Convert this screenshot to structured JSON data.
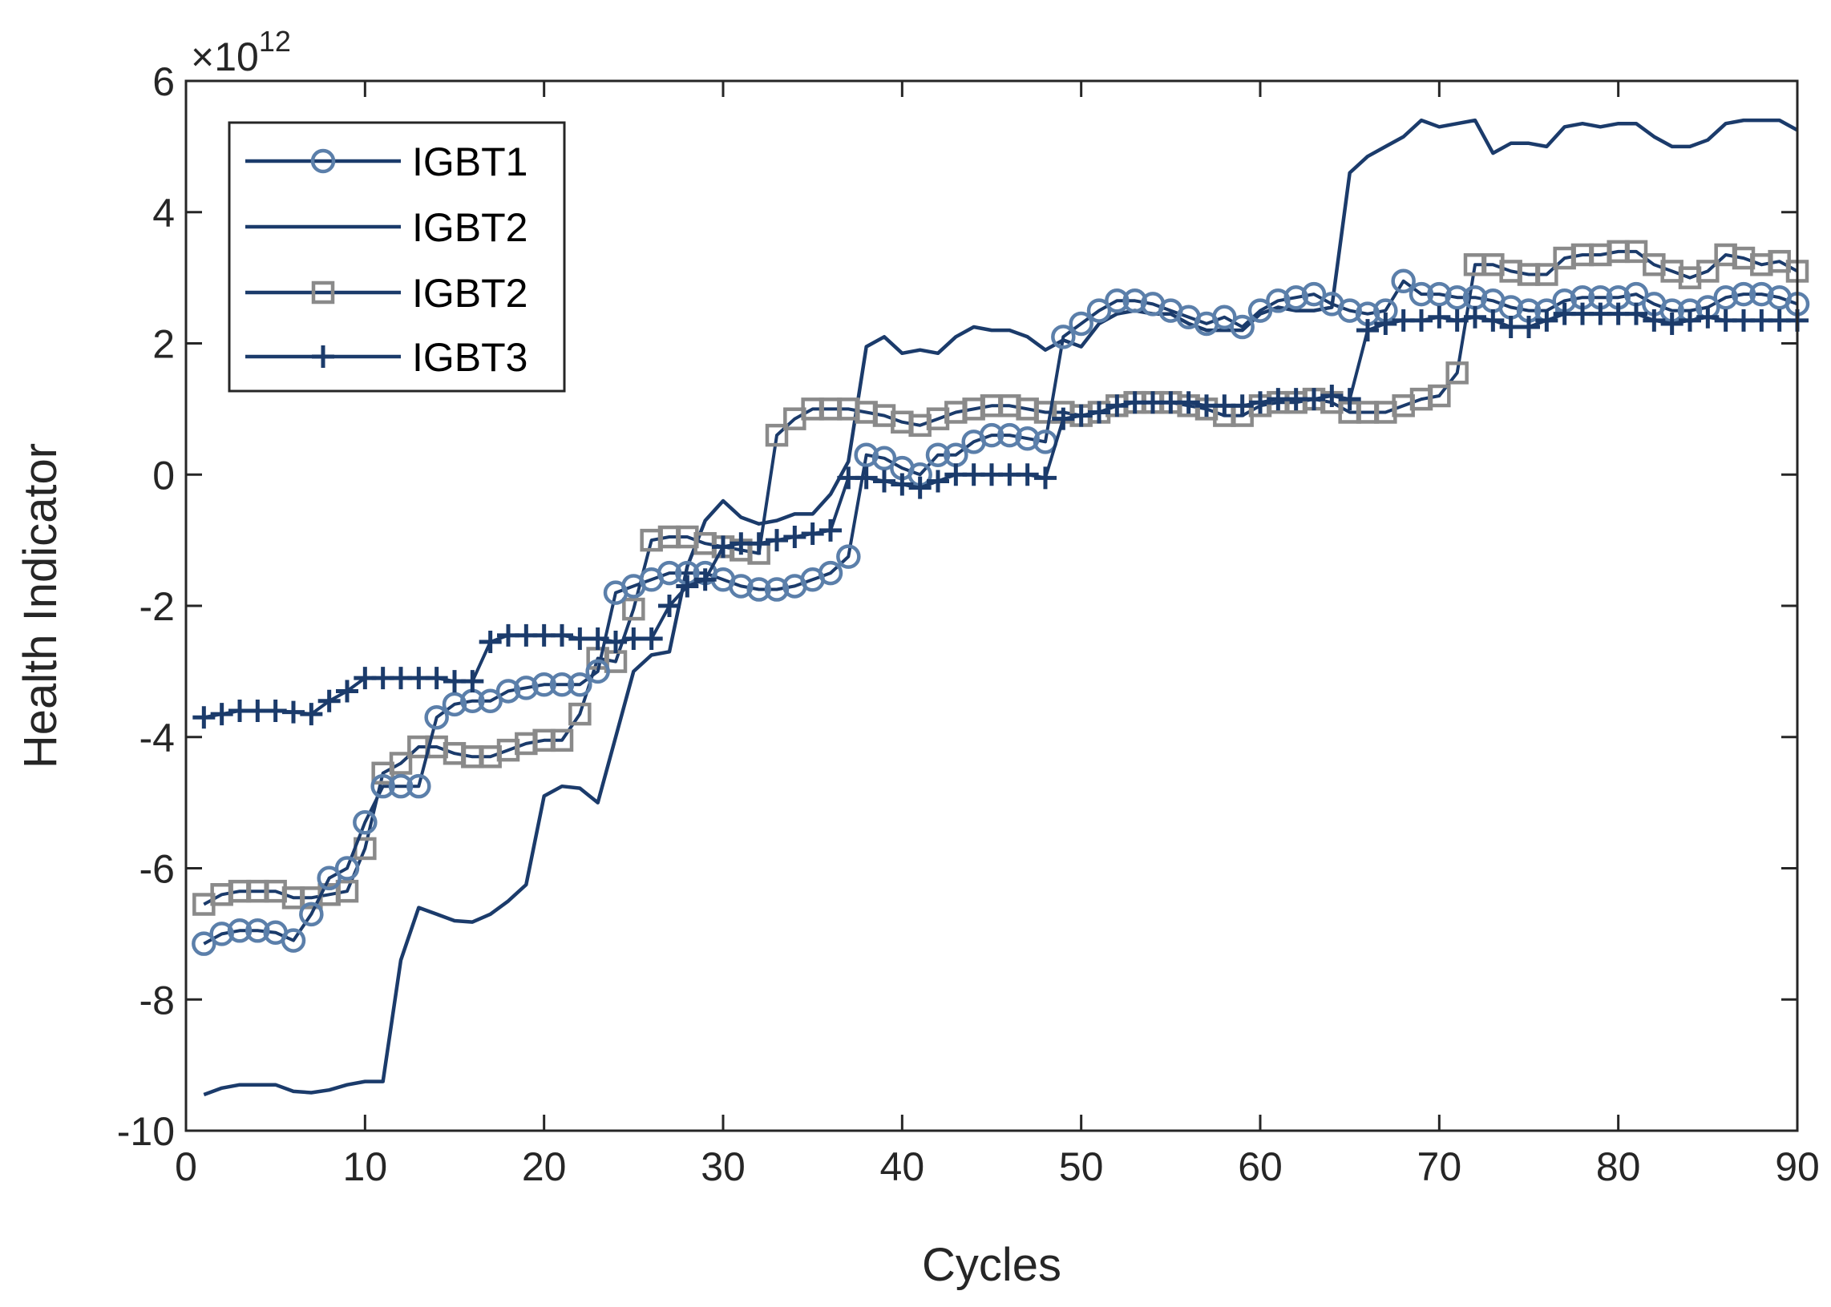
{
  "chart_data": {
    "type": "line",
    "title": "",
    "xlabel": "Cycles",
    "ylabel": "Health Indicator",
    "y_exponent": {
      "base": "×10",
      "power": "12"
    },
    "xlim": [
      0,
      90
    ],
    "ylim": [
      -10,
      6
    ],
    "xticks": [
      0,
      10,
      20,
      30,
      40,
      50,
      60,
      70,
      80,
      90
    ],
    "yticks": [
      6,
      4,
      2,
      0,
      -2,
      -4,
      -6,
      -8,
      -10
    ],
    "xtick_labels": [
      "0",
      "10",
      "20",
      "30",
      "40",
      "50",
      "60",
      "70",
      "80",
      "90"
    ],
    "ytick_labels": [
      "6",
      "4",
      "2",
      "0",
      "-2",
      "-4",
      "-6",
      "-8",
      "-10"
    ],
    "grid": false,
    "legend_position": "top-left",
    "x": [
      1,
      2,
      3,
      4,
      5,
      6,
      7,
      8,
      9,
      10,
      11,
      12,
      13,
      14,
      15,
      16,
      17,
      18,
      19,
      20,
      21,
      22,
      23,
      24,
      25,
      26,
      27,
      28,
      29,
      30,
      31,
      32,
      33,
      34,
      35,
      36,
      37,
      38,
      39,
      40,
      41,
      42,
      43,
      44,
      45,
      46,
      47,
      48,
      49,
      50,
      51,
      52,
      53,
      54,
      55,
      56,
      57,
      58,
      59,
      60,
      61,
      62,
      63,
      64,
      65,
      66,
      67,
      68,
      69,
      70,
      71,
      72,
      73,
      74,
      75,
      76,
      77,
      78,
      79,
      80,
      81,
      82,
      83,
      84,
      85,
      86,
      87,
      88,
      89,
      90
    ],
    "series": [
      {
        "name": "IGBT1",
        "color": "#5b7faa",
        "line_color": "#1b3b6b",
        "marker": "circle",
        "values": [
          -7.15,
          -7.0,
          -6.95,
          -6.95,
          -6.98,
          -7.1,
          -6.7,
          -6.15,
          -6.0,
          -5.3,
          -4.75,
          -4.75,
          -4.75,
          -3.7,
          -3.5,
          -3.45,
          -3.45,
          -3.3,
          -3.25,
          -3.2,
          -3.2,
          -3.2,
          -3.0,
          -1.8,
          -1.7,
          -1.6,
          -1.5,
          -1.5,
          -1.5,
          -1.6,
          -1.7,
          -1.75,
          -1.75,
          -1.7,
          -1.6,
          -1.5,
          -1.25,
          0.3,
          0.25,
          0.1,
          0.0,
          0.3,
          0.3,
          0.5,
          0.6,
          0.6,
          0.55,
          0.5,
          2.1,
          2.3,
          2.5,
          2.65,
          2.65,
          2.6,
          2.5,
          2.4,
          2.3,
          2.4,
          2.25,
          2.5,
          2.65,
          2.7,
          2.75,
          2.6,
          2.5,
          2.45,
          2.5,
          2.95,
          2.75,
          2.75,
          2.7,
          2.7,
          2.65,
          2.55,
          2.5,
          2.5,
          2.65,
          2.7,
          2.7,
          2.7,
          2.75,
          2.6,
          2.5,
          2.5,
          2.55,
          2.7,
          2.75,
          2.75,
          2.7,
          2.6
        ]
      },
      {
        "name": "IGBT2",
        "color": "#1b3b6b",
        "line_color": "#1b3b6b",
        "marker": "none",
        "values": [
          -9.45,
          -9.35,
          -9.3,
          -9.3,
          -9.3,
          -9.4,
          -9.42,
          -9.38,
          -9.3,
          -9.25,
          -9.25,
          -7.4,
          -6.6,
          -6.7,
          -6.8,
          -6.82,
          -6.7,
          -6.5,
          -6.25,
          -4.9,
          -4.75,
          -4.78,
          -5.0,
          -4.0,
          -3.0,
          -2.75,
          -2.7,
          -1.4,
          -0.7,
          -0.4,
          -0.65,
          -0.75,
          -0.7,
          -0.6,
          -0.6,
          -0.3,
          0.2,
          1.95,
          2.1,
          1.85,
          1.9,
          1.85,
          2.1,
          2.25,
          2.2,
          2.2,
          2.1,
          1.9,
          2.05,
          1.95,
          2.3,
          2.45,
          2.5,
          2.45,
          2.45,
          2.3,
          2.2,
          2.2,
          2.2,
          2.45,
          2.55,
          2.5,
          2.5,
          2.55,
          4.6,
          4.85,
          5.0,
          5.15,
          5.4,
          5.3,
          5.35,
          5.4,
          4.9,
          5.05,
          5.05,
          5.0,
          5.3,
          5.35,
          5.3,
          5.35,
          5.35,
          5.15,
          5.0,
          5.0,
          5.1,
          5.35,
          5.4,
          5.4,
          5.4,
          5.25
        ]
      },
      {
        "name": "IGBT2",
        "color": "#8a8a8a",
        "line_color": "#1b3b6b",
        "marker": "square",
        "values": [
          -6.55,
          -6.4,
          -6.35,
          -6.35,
          -6.35,
          -6.45,
          -6.45,
          -6.4,
          -6.35,
          -5.7,
          -4.55,
          -4.4,
          -4.15,
          -4.15,
          -4.25,
          -4.3,
          -4.3,
          -4.2,
          -4.1,
          -4.05,
          -4.05,
          -3.65,
          -2.8,
          -2.85,
          -2.05,
          -1.0,
          -0.95,
          -0.95,
          -1.05,
          -1.1,
          -1.15,
          -1.2,
          0.6,
          0.85,
          1.0,
          1.0,
          1.0,
          0.95,
          0.9,
          0.8,
          0.75,
          0.85,
          0.95,
          1.0,
          1.05,
          1.05,
          1.0,
          0.95,
          0.95,
          0.9,
          0.95,
          1.05,
          1.1,
          1.1,
          1.1,
          1.05,
          1.0,
          0.9,
          0.9,
          1.05,
          1.1,
          1.1,
          1.15,
          1.1,
          0.95,
          0.95,
          0.95,
          1.05,
          1.15,
          1.2,
          1.55,
          3.2,
          3.2,
          3.1,
          3.05,
          3.05,
          3.3,
          3.35,
          3.35,
          3.4,
          3.4,
          3.2,
          3.1,
          3.0,
          3.1,
          3.35,
          3.3,
          3.2,
          3.25,
          3.1
        ]
      },
      {
        "name": "IGBT3",
        "color": "#1b3b6b",
        "line_color": "#1b3b6b",
        "marker": "plus",
        "values": [
          -3.7,
          -3.65,
          -3.6,
          -3.6,
          -3.6,
          -3.62,
          -3.65,
          -3.45,
          -3.3,
          -3.1,
          -3.1,
          -3.1,
          -3.1,
          -3.1,
          -3.15,
          -3.15,
          -2.55,
          -2.45,
          -2.45,
          -2.45,
          -2.45,
          -2.5,
          -2.5,
          -2.55,
          -2.5,
          -2.5,
          -2.0,
          -1.7,
          -1.6,
          -1.1,
          -1.05,
          -1.05,
          -1.0,
          -0.95,
          -0.9,
          -0.85,
          -0.05,
          -0.05,
          -0.1,
          -0.15,
          -0.2,
          -0.1,
          0.0,
          0.0,
          0.0,
          0.0,
          0.0,
          -0.05,
          0.85,
          0.9,
          0.95,
          1.05,
          1.1,
          1.1,
          1.1,
          1.1,
          1.05,
          1.05,
          1.05,
          1.1,
          1.15,
          1.15,
          1.15,
          1.2,
          1.15,
          2.2,
          2.3,
          2.35,
          2.35,
          2.4,
          2.35,
          2.4,
          2.35,
          2.25,
          2.25,
          2.35,
          2.45,
          2.45,
          2.45,
          2.45,
          2.45,
          2.35,
          2.3,
          2.35,
          2.4,
          2.35,
          2.35,
          2.35,
          2.35,
          2.35
        ]
      }
    ]
  }
}
